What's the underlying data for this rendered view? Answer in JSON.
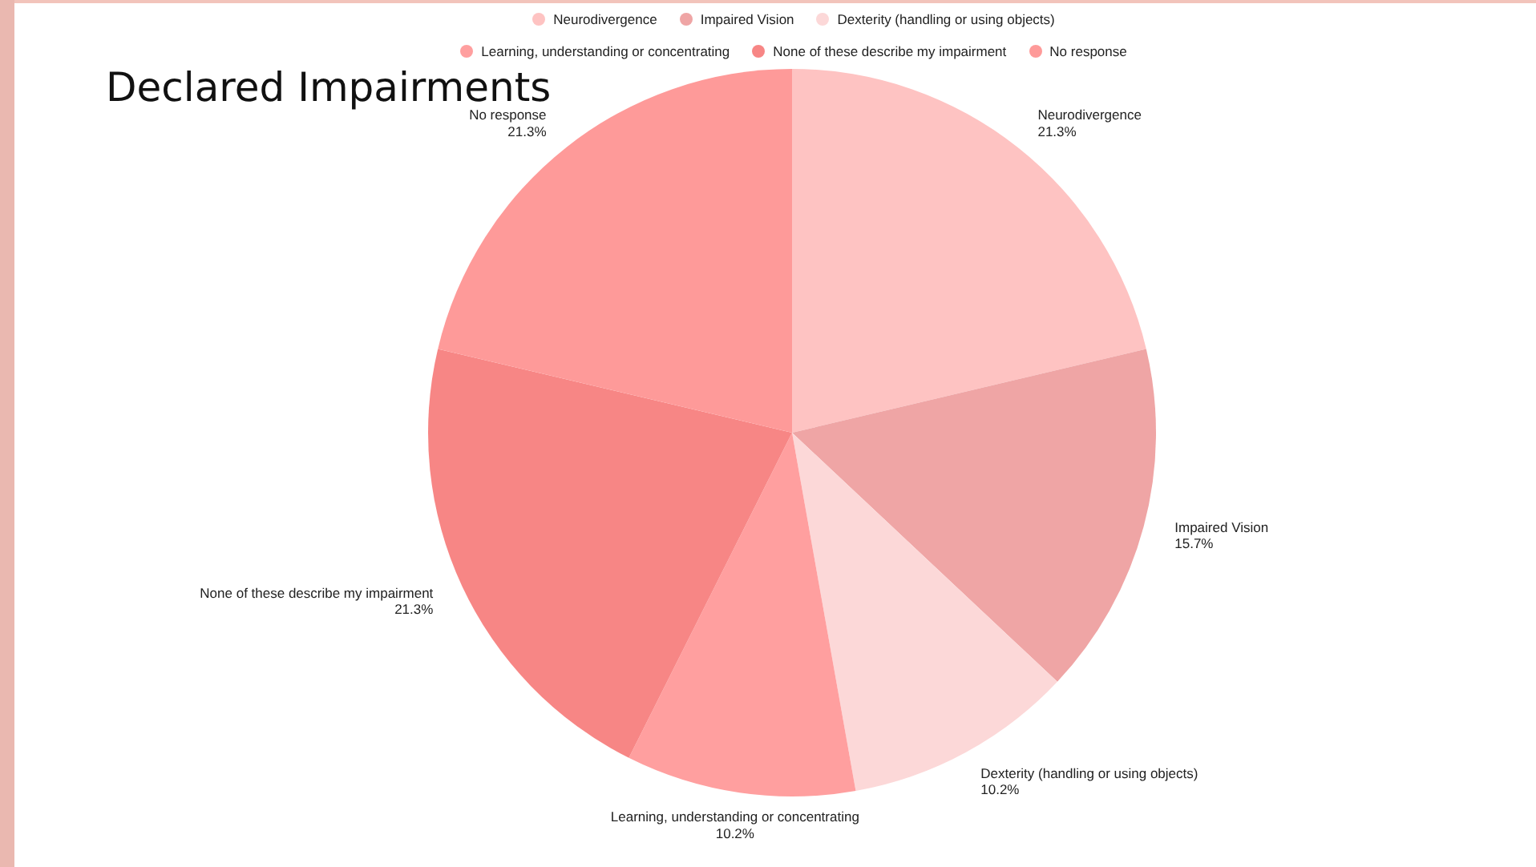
{
  "chart_data": {
    "type": "pie",
    "title": "Declared Impairments",
    "categories": [
      "Neurodivergence",
      "Impaired Vision",
      "Dexterity (handling or using objects)",
      "Learning, understanding or concentrating",
      "None of these describe my impairment",
      "No response"
    ],
    "values": [
      21.3,
      15.7,
      10.2,
      10.2,
      21.3,
      21.3
    ],
    "value_labels": [
      "21.3%",
      "15.7%",
      "10.2%",
      "10.2%",
      "21.3%",
      "21.3%"
    ],
    "colors": [
      "#fec3c2",
      "#efa5a5",
      "#fcd8d8",
      "#ff9f9f",
      "#f78685",
      "#fe9a99"
    ],
    "legend": "top"
  }
}
